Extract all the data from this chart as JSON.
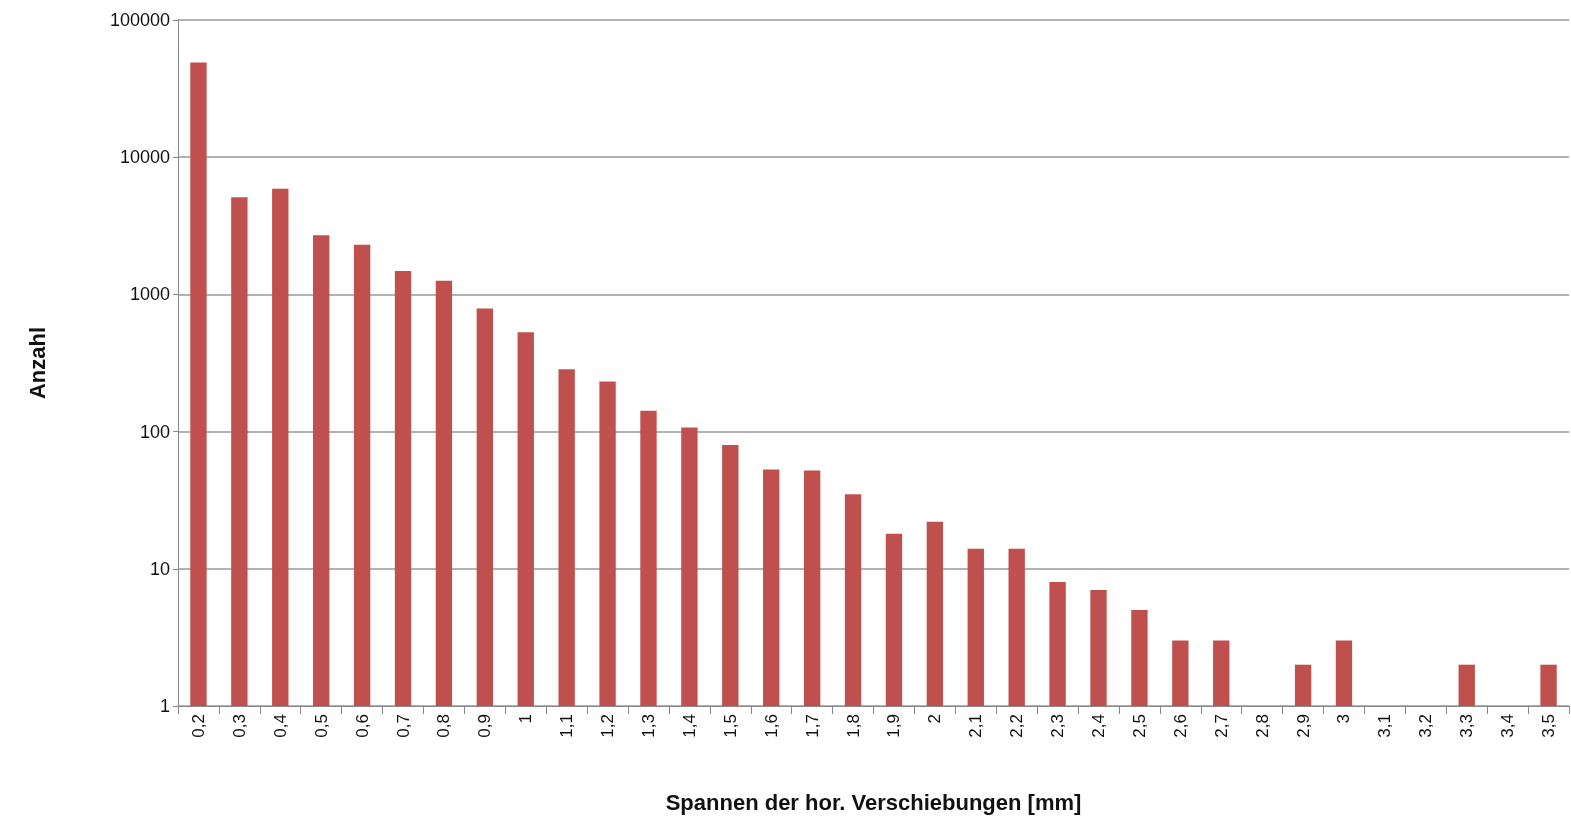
{
  "chart_data": {
    "type": "bar",
    "xlabel": "Spannen der hor. Verschiebungen [mm]",
    "ylabel": "Anzahl",
    "categories": [
      "0,2",
      "0,3",
      "0,4",
      "0,5",
      "0,6",
      "0,7",
      "0,8",
      "0,9",
      "1",
      "1,1",
      "1,2",
      "1,3",
      "1,4",
      "1,5",
      "1,6",
      "1,7",
      "1,8",
      "1,9",
      "2",
      "2,1",
      "2,2",
      "2,3",
      "2,4",
      "2,5",
      "2,6",
      "2,7",
      "2,8",
      "2,9",
      "3",
      "3,1",
      "3,2",
      "3,3",
      "3,4",
      "3,5"
    ],
    "values": [
      49000,
      5100,
      5900,
      2700,
      2300,
      1480,
      1260,
      790,
      530,
      285,
      232,
      142,
      107,
      80,
      53,
      52,
      35,
      18,
      22,
      14,
      14,
      8,
      7,
      5,
      3,
      3,
      null,
      2,
      3,
      null,
      null,
      2,
      null,
      2
    ],
    "color": "#c0504d",
    "log": "y",
    "ylim": [
      1,
      100000
    ],
    "yticks": [
      1,
      10,
      100,
      1000,
      10000,
      100000
    ],
    "grid": "y"
  }
}
